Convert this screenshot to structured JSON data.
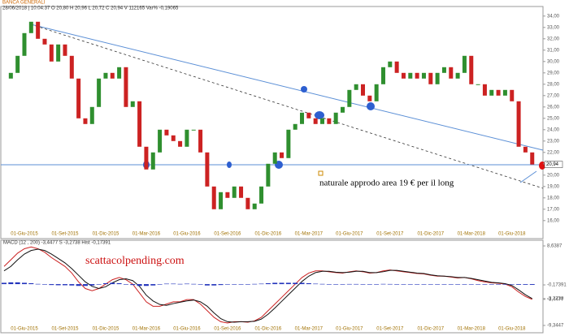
{
  "chart_data": [
    {
      "type": "candlestick",
      "title": "BANCA GENERALI",
      "subtitle": "28/06/2018 | 10:04:37  O 20,80  H 20,96  L 20,72  C 20,94  V 112165  Var% -0,19065",
      "annotation": "naturale approdo area 19 € per il long",
      "categories": [
        null,
        null,
        null,
        "01-Giu-2015",
        null,
        null,
        null,
        null,
        null,
        "01-Set-2015",
        null,
        null,
        null,
        null,
        null,
        "01-Dic-2015",
        null,
        null,
        null,
        null,
        null,
        "01-Mar-2016",
        null,
        null,
        null,
        null,
        null,
        "01-Giu-2016",
        null,
        null,
        null,
        null,
        null,
        "01-Set-2016",
        null,
        null,
        null,
        null,
        null,
        "01-Dic-2016",
        null,
        null,
        null,
        null,
        null,
        "01-Mar-2017",
        null,
        null,
        null,
        null,
        null,
        "01-Giu-2017",
        null,
        null,
        null,
        null,
        null,
        "01-Set-2017",
        null,
        null,
        null,
        null,
        null,
        "01-Dic-2017",
        null,
        null,
        null,
        null,
        null,
        "01-Mar-2018",
        null,
        null,
        null,
        null,
        null,
        "01-Giu-2018",
        null,
        null,
        null
      ],
      "values": [
        28.5,
        29,
        30.5,
        32.5,
        33.5,
        32,
        31.5,
        30,
        31.5,
        30.5,
        28.5,
        25,
        24.5,
        26,
        28.5,
        29,
        28.5,
        29.5,
        26,
        26.5,
        22.5,
        20.5,
        22,
        24,
        23.5,
        23,
        22.5,
        24,
        24,
        22,
        19,
        17,
        18.5,
        18,
        19,
        18,
        17,
        17.5,
        19,
        21,
        22,
        21.5,
        24,
        24.5,
        25.5,
        25,
        24.5,
        25,
        24.5,
        25.5,
        26,
        27.5,
        28,
        27,
        26.5,
        28,
        29.5,
        30,
        29,
        28.5,
        29,
        28.5,
        29,
        28,
        29,
        29.5,
        28.5,
        29,
        30.5,
        28,
        28,
        27,
        27.5,
        27,
        27.5,
        26.5,
        22.5,
        22,
        20.94
      ],
      "up_color": "#2f8f2f",
      "down_color": "#cc2222",
      "last_label": {
        "value": 20.94,
        "label": "20,94"
      },
      "ylim": [
        14.7,
        34.7
      ],
      "yticks": [
        {
          "value": 16,
          "label": "16,00"
        },
        {
          "value": 17,
          "label": "17,00"
        },
        {
          "value": 18,
          "label": "18,00"
        },
        {
          "value": 19,
          "label": "19,00"
        },
        {
          "value": 20,
          "label": "20,00"
        },
        {
          "value": 21,
          "label": "21,00"
        },
        {
          "value": 22,
          "label": "22,00"
        },
        {
          "value": 23,
          "label": "23,00"
        },
        {
          "value": 24,
          "label": "24,00"
        },
        {
          "value": 25,
          "label": "25,00"
        },
        {
          "value": 26,
          "label": "26,00"
        },
        {
          "value": 27,
          "label": "27,00"
        },
        {
          "value": 28,
          "label": "28,00"
        },
        {
          "value": 29,
          "label": "29,00"
        },
        {
          "value": 30,
          "label": "30,00"
        },
        {
          "value": 31,
          "label": "31,00"
        },
        {
          "value": 32,
          "label": "32,00"
        },
        {
          "value": 33,
          "label": "33,00"
        },
        {
          "value": 34,
          "label": "34,00"
        }
      ]
    },
    {
      "type": "macd",
      "title": "MACD (12 , 200)   -3,4477   S  -3,2738   Hist  -0,17391",
      "annotation": "scattacolpending.com",
      "categories": [
        null,
        null,
        null,
        "01-Giu-2015",
        null,
        null,
        null,
        null,
        null,
        "01-Set-2015",
        null,
        null,
        null,
        null,
        null,
        "01-Dic-2015",
        null,
        null,
        null,
        null,
        null,
        "01-Mar-2016",
        null,
        null,
        null,
        null,
        null,
        "01-Giu-2016",
        null,
        null,
        null,
        null,
        null,
        "01-Set-2016",
        null,
        null,
        null,
        null,
        null,
        "01-Dic-2016",
        null,
        null,
        null,
        null,
        null,
        "01-Mar-2017",
        null,
        null,
        null,
        null,
        null,
        "01-Giu-2017",
        null,
        null,
        null,
        null,
        null,
        "01-Set-2017",
        null,
        null,
        null,
        null,
        null,
        "01-Dic-2017",
        null,
        null,
        null,
        null,
        null,
        "01-Mar-2018",
        null,
        null,
        null,
        null,
        null,
        "01-Giu-2018",
        null,
        null,
        null
      ],
      "series": [
        {
          "name": "MACD",
          "color": "#cc2222",
          "values": [
            4,
            5.5,
            7,
            8,
            8.4,
            8,
            7.2,
            6,
            5,
            4,
            2.5,
            0.5,
            -1,
            -1.5,
            -1,
            0,
            1,
            1.5,
            1,
            0,
            -2,
            -4,
            -5,
            -5,
            -4.5,
            -4,
            -4,
            -3.5,
            -3.5,
            -4.5,
            -6,
            -7.5,
            -8.5,
            -8.8,
            -8.5,
            -8.5,
            -8.6,
            -8.3,
            -7.5,
            -6,
            -4.5,
            -3,
            -1.5,
            0,
            1.5,
            2.5,
            3,
            3,
            2.8,
            2.6,
            2.5,
            2.8,
            3,
            2.8,
            2.5,
            2.6,
            3,
            3.2,
            3,
            2.8,
            2.6,
            2.4,
            2.3,
            2,
            1.8,
            1.8,
            1.6,
            1.4,
            1.5,
            1.2,
            0.8,
            0.5,
            0.3,
            0.2,
            0,
            -0.6,
            -1.8,
            -2.8,
            -3.4477
          ]
        },
        {
          "name": "S",
          "color": "#111111",
          "values": [
            3,
            4,
            5.5,
            6.8,
            7.6,
            7.9,
            7.6,
            6.8,
            5.8,
            4.8,
            3.5,
            2,
            0.5,
            -0.5,
            -1,
            -0.6,
            0.3,
            1,
            1.2,
            0.8,
            -0.5,
            -2.5,
            -3.8,
            -4.6,
            -4.8,
            -4.4,
            -4.1,
            -3.8,
            -3.6,
            -4,
            -5,
            -6.5,
            -7.8,
            -8.5,
            -8.6,
            -8.5,
            -8.5,
            -8.4,
            -7.9,
            -6.8,
            -5.4,
            -3.9,
            -2.4,
            -0.9,
            0.6,
            1.8,
            2.6,
            2.9,
            2.9,
            2.7,
            2.6,
            2.7,
            2.9,
            2.9,
            2.6,
            2.6,
            2.8,
            3.1,
            3.1,
            2.9,
            2.7,
            2.5,
            2.4,
            2.1,
            1.9,
            1.8,
            1.7,
            1.5,
            1.5,
            1.3,
            1,
            0.7,
            0.4,
            0.3,
            0.1,
            -0.3,
            -1.3,
            -2.4,
            -3.2738
          ]
        },
        {
          "name": "Hist",
          "color": "#2233bb",
          "values": [
            0.3,
            0.4,
            0.4,
            0.3,
            0.2,
            0.05,
            -0.1,
            -0.2,
            -0.25,
            -0.25,
            -0.3,
            -0.4,
            -0.4,
            -0.3,
            -0.1,
            0.2,
            0.3,
            0.2,
            -0.05,
            -0.2,
            -0.4,
            -0.4,
            -0.3,
            -0.1,
            0.1,
            0.1,
            0.05,
            0.1,
            0.05,
            -0.1,
            -0.3,
            -0.3,
            -0.2,
            -0.1,
            0,
            0,
            0,
            0.05,
            0.1,
            0.2,
            0.3,
            0.3,
            0.3,
            0.3,
            0.3,
            0.2,
            0.1,
            0.05,
            -0.03,
            -0.03,
            -0.03,
            0.03,
            0.03,
            -0.03,
            -0.03,
            0,
            0.05,
            0.03,
            -0.03,
            -0.03,
            -0.03,
            -0.03,
            -0.03,
            -0.03,
            -0.03,
            0,
            -0.03,
            -0.03,
            0,
            -0.03,
            -0.05,
            -0.05,
            -0.03,
            -0.03,
            -0.03,
            -0.1,
            -0.15,
            -0.15,
            -0.17391
          ]
        }
      ],
      "ylim": [
        -9.3447,
        8.6387
      ],
      "yticks": [
        {
          "value": 8.6387,
          "label": "8,6387"
        },
        {
          "value": -0.17391,
          "label": "-0,17391"
        },
        {
          "value": -3.2738,
          "label": "-3,2738"
        },
        {
          "value": -3.4477,
          "label": "-3,4477"
        },
        {
          "value": -9.3447,
          "label": "-9,3447"
        }
      ]
    }
  ]
}
